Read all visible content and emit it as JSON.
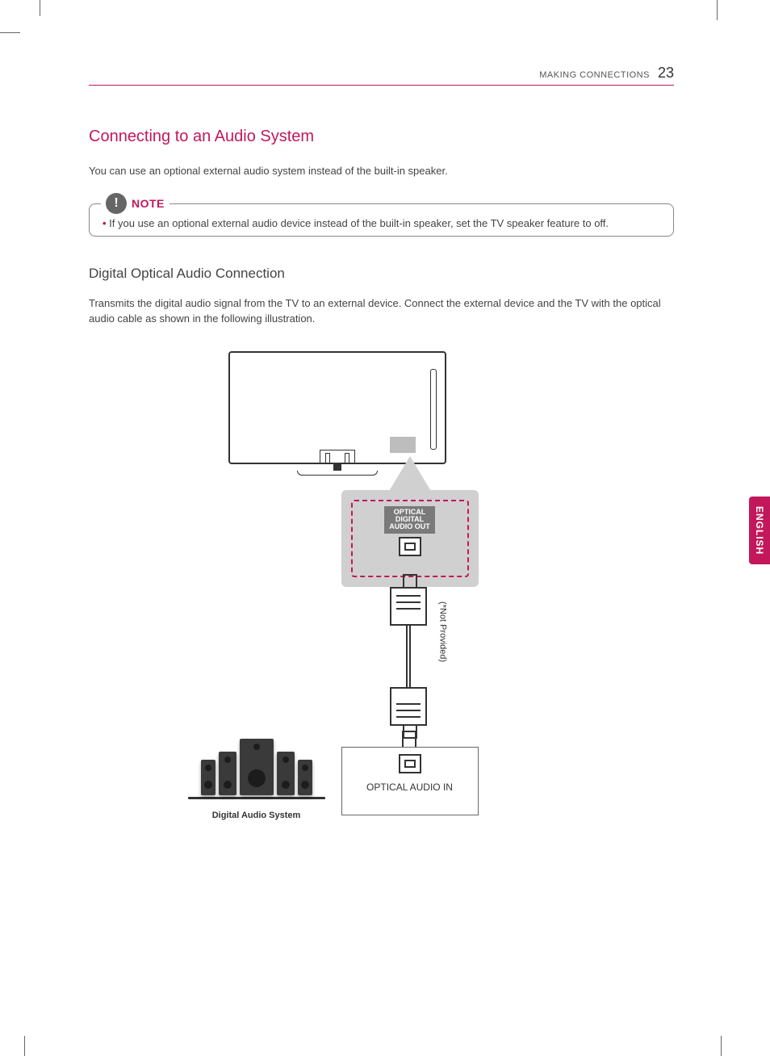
{
  "colors": {
    "accent": "#c2185b",
    "text": "#444444",
    "panel_gray": "#d0d0d0",
    "port_label_bg": "#7a7a7a",
    "icon_gray": "#666666",
    "speaker_dark": "#3a3a3a",
    "background": "#ffffff"
  },
  "typography": {
    "heading_fontsize_pt": 15,
    "subheading_fontsize_pt": 13,
    "body_fontsize_pt": 10,
    "caption_fontsize_pt": 8.5,
    "font_family": "Arial"
  },
  "header": {
    "section": "MAKING CONNECTIONS",
    "page_number": "23"
  },
  "section": {
    "title": "Connecting to an Audio System",
    "intro": "You can use an optional external audio system instead of the built-in speaker."
  },
  "note": {
    "label": "NOTE",
    "items": [
      "If you use an optional external audio device instead of the built-in speaker, set the TV speaker feature to off."
    ]
  },
  "subsection": {
    "title": "Digital Optical Audio Connection",
    "body": "Transmits the digital audio signal from the TV to an external device. Connect the external device and the TV with the optical audio cable as shown in the following illustration."
  },
  "diagram": {
    "type": "infographic",
    "tv_port_label_lines": [
      "OPTICAL",
      "DIGITAL",
      "AUDIO OUT"
    ],
    "cable_note": "(*Not Provided)",
    "receiver_port_label": "OPTICAL AUDIO IN",
    "speaker_caption": "Digital Audio System",
    "speaker_layout": [
      "sm",
      "md",
      "sub",
      "md",
      "sm"
    ],
    "dashed_border_color": "#c2185b",
    "panel_bg": "#d0d0d0",
    "line_stroke": "#333333"
  },
  "language_tab": "ENGLISH"
}
